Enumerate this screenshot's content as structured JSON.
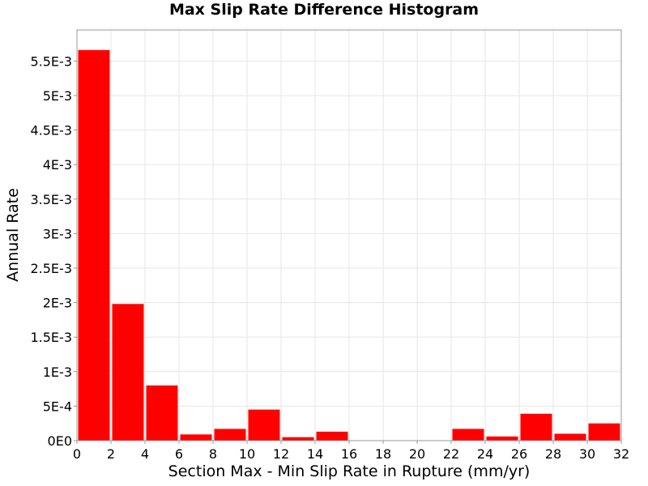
{
  "chart_data": {
    "type": "bar",
    "title": "Max Slip Rate Difference Histogram",
    "xlabel": "Section Max - Min Slip Rate in Rupture (mm/yr)",
    "ylabel": "Annual Rate",
    "xlim": [
      0,
      32
    ],
    "ylim": [
      0,
      0.00595
    ],
    "grid": true,
    "bar_color": "#ff0000",
    "bin_width": 2,
    "x_ticks": [
      0,
      2,
      4,
      6,
      8,
      10,
      12,
      14,
      16,
      18,
      20,
      22,
      24,
      26,
      28,
      30,
      32
    ],
    "x_tick_labels": [
      "0",
      "2",
      "4",
      "6",
      "8",
      "10",
      "12",
      "14",
      "16",
      "18",
      "20",
      "22",
      "24",
      "26",
      "28",
      "30",
      "32"
    ],
    "y_ticks": [
      0,
      0.0005,
      0.001,
      0.0015,
      0.002,
      0.0025,
      0.003,
      0.0035,
      0.004,
      0.0045,
      0.005,
      0.0055
    ],
    "y_tick_labels": [
      "0E0",
      "5E-4",
      "1E-3",
      "1.5E-3",
      "2E-3",
      "2.5E-3",
      "3E-3",
      "3.5E-3",
      "4E-3",
      "4.5E-3",
      "5E-3",
      "5.5E-3"
    ],
    "bins": [
      {
        "x": 1,
        "value": 0.00566
      },
      {
        "x": 3,
        "value": 0.00198
      },
      {
        "x": 5,
        "value": 0.0008
      },
      {
        "x": 7,
        "value": 9e-05
      },
      {
        "x": 9,
        "value": 0.00017
      },
      {
        "x": 11,
        "value": 0.00045
      },
      {
        "x": 13,
        "value": 5e-05
      },
      {
        "x": 15,
        "value": 0.00013
      },
      {
        "x": 17,
        "value": 0
      },
      {
        "x": 19,
        "value": 0
      },
      {
        "x": 21,
        "value": 0
      },
      {
        "x": 23,
        "value": 0.00017
      },
      {
        "x": 25,
        "value": 6e-05
      },
      {
        "x": 27,
        "value": 0.00039
      },
      {
        "x": 29,
        "value": 0.0001
      },
      {
        "x": 31,
        "value": 0.00025
      }
    ]
  }
}
